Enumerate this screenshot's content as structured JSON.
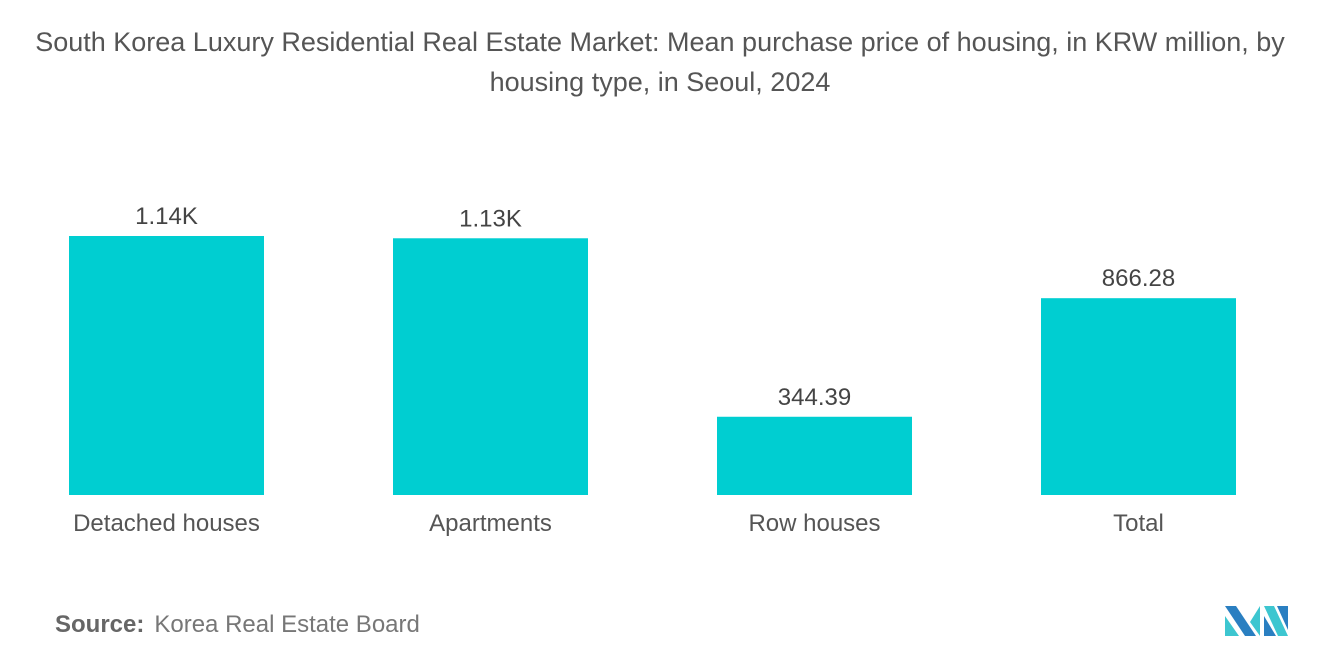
{
  "chart_data": {
    "type": "bar",
    "title": "South Korea Luxury Residential Real Estate Market: Mean purchase price of housing, in KRW million, by housing type, in Seoul, 2024",
    "categories": [
      "Detached houses",
      "Apartments",
      "Row houses",
      "Total"
    ],
    "values": [
      1140,
      1130,
      344.39,
      866.28
    ],
    "data_labels": [
      "1.14K",
      "1.13K",
      "344.39",
      "866.28"
    ],
    "xlabel": "",
    "ylabel": "",
    "grid": false,
    "bar_color": "#00CED1"
  },
  "source": {
    "label": "Source:",
    "text": "Korea Real Estate Board"
  },
  "logo": {
    "text": "MI",
    "colors": [
      "#2A7FC1",
      "#3DC6D0"
    ]
  }
}
